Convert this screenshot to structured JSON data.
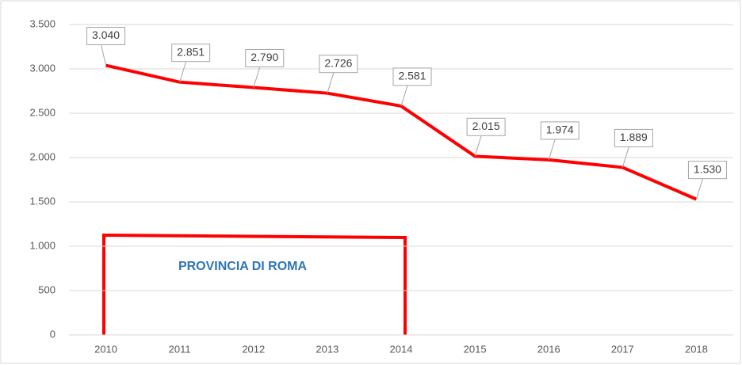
{
  "chart_data": {
    "type": "line",
    "categories": [
      "2010",
      "2011",
      "2012",
      "2013",
      "2014",
      "2015",
      "2016",
      "2017",
      "2018"
    ],
    "series": [
      {
        "name": "Provincia di Roma",
        "color": "#ff0000",
        "values": [
          3040,
          2851,
          2790,
          2726,
          2581,
          2015,
          1974,
          1889,
          1530
        ],
        "value_labels": [
          "3.040",
          "2.851",
          "2.790",
          "2.726",
          "2.581",
          "2.015",
          "1.974",
          "1.889",
          "1.530"
        ]
      }
    ],
    "ylim": [
      0,
      3500
    ],
    "yticks": [
      {
        "value": 0,
        "label": "0"
      },
      {
        "value": 500,
        "label": "500"
      },
      {
        "value": 1000,
        "label": "1.000"
      },
      {
        "value": 1500,
        "label": "1.500"
      },
      {
        "value": 2000,
        "label": "2.000"
      },
      {
        "value": 2500,
        "label": "2.500"
      },
      {
        "value": 3000,
        "label": "3.000"
      },
      {
        "value": 3500,
        "label": "3.500"
      }
    ],
    "grid": true,
    "annotation": "PROVINCIA DI ROMA"
  }
}
